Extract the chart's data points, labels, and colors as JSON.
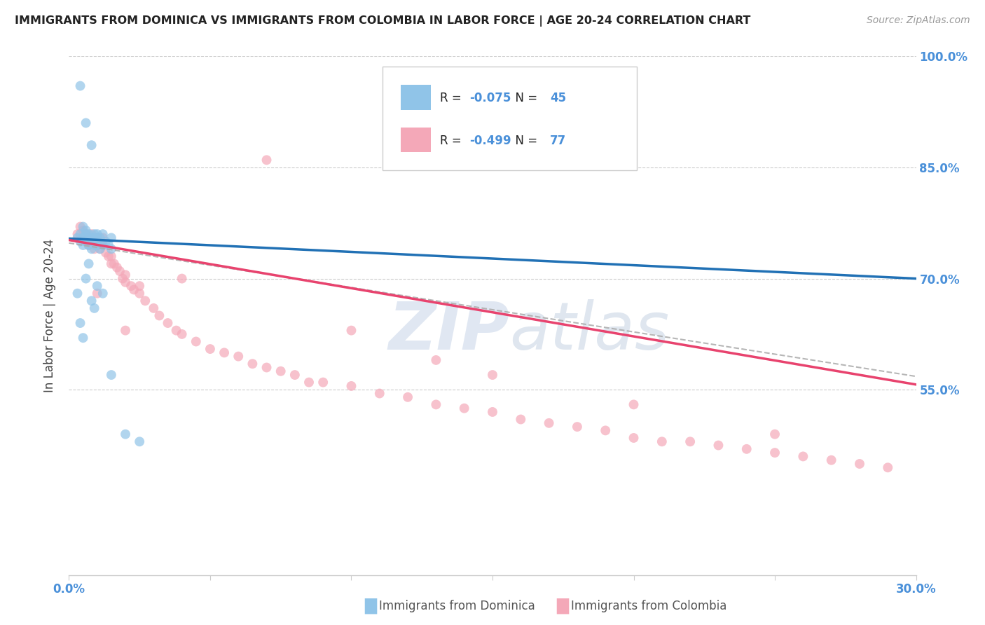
{
  "title": "IMMIGRANTS FROM DOMINICA VS IMMIGRANTS FROM COLOMBIA IN LABOR FORCE | AGE 20-24 CORRELATION CHART",
  "source": "Source: ZipAtlas.com",
  "ylabel": "In Labor Force | Age 20-24",
  "xlim": [
    0.0,
    0.3
  ],
  "ylim": [
    0.3,
    1.0
  ],
  "xtick_positions": [
    0.0,
    0.05,
    0.1,
    0.15,
    0.2,
    0.25,
    0.3
  ],
  "xtick_labels": [
    "0.0%",
    "",
    "",
    "",
    "",
    "",
    "30.0%"
  ],
  "ytick_positions": [
    0.55,
    0.7,
    0.85,
    1.0
  ],
  "ytick_labels": [
    "55.0%",
    "70.0%",
    "85.0%",
    "100.0%"
  ],
  "grid_lines": [
    0.55,
    0.7,
    0.85,
    1.0
  ],
  "dominica_color": "#90c4e8",
  "colombia_color": "#f4a8b8",
  "dominica_line_color": "#2171b5",
  "colombia_line_color": "#e8436e",
  "dashed_line_color": "#aaaaaa",
  "R_dominica": -0.075,
  "N_dominica": 45,
  "R_colombia": -0.499,
  "N_colombia": 77,
  "watermark_zip": "ZIP",
  "watermark_atlas": "atlas",
  "legend_label_dominica": "Immigrants from Dominica",
  "legend_label_colombia": "Immigrants from Colombia",
  "dominica_line_intercept": 0.754,
  "dominica_line_slope": -0.18,
  "colombia_line_intercept": 0.752,
  "colombia_line_slope": -0.65,
  "dashed_line_intercept": 0.748,
  "dashed_line_slope": -0.6,
  "dominica_x": [
    0.003,
    0.004,
    0.004,
    0.005,
    0.005,
    0.005,
    0.006,
    0.006,
    0.006,
    0.007,
    0.007,
    0.007,
    0.008,
    0.008,
    0.008,
    0.009,
    0.009,
    0.009,
    0.01,
    0.01,
    0.01,
    0.01,
    0.011,
    0.011,
    0.012,
    0.012,
    0.013,
    0.014,
    0.015,
    0.015,
    0.003,
    0.004,
    0.005,
    0.006,
    0.007,
    0.008,
    0.009,
    0.01,
    0.012,
    0.015,
    0.02,
    0.025,
    0.008,
    0.006,
    0.004
  ],
  "dominica_y": [
    0.755,
    0.76,
    0.75,
    0.745,
    0.755,
    0.77,
    0.75,
    0.765,
    0.76,
    0.755,
    0.745,
    0.76,
    0.75,
    0.755,
    0.74,
    0.745,
    0.755,
    0.76,
    0.75,
    0.745,
    0.755,
    0.76,
    0.74,
    0.755,
    0.745,
    0.76,
    0.75,
    0.745,
    0.74,
    0.755,
    0.68,
    0.64,
    0.62,
    0.7,
    0.72,
    0.67,
    0.66,
    0.69,
    0.68,
    0.57,
    0.49,
    0.48,
    0.88,
    0.91,
    0.96
  ],
  "colombia_x": [
    0.003,
    0.004,
    0.005,
    0.005,
    0.006,
    0.006,
    0.007,
    0.007,
    0.008,
    0.008,
    0.009,
    0.009,
    0.01,
    0.01,
    0.011,
    0.011,
    0.012,
    0.012,
    0.013,
    0.014,
    0.015,
    0.015,
    0.016,
    0.017,
    0.018,
    0.019,
    0.02,
    0.02,
    0.022,
    0.023,
    0.025,
    0.025,
    0.027,
    0.03,
    0.032,
    0.035,
    0.038,
    0.04,
    0.045,
    0.05,
    0.055,
    0.06,
    0.065,
    0.07,
    0.075,
    0.08,
    0.085,
    0.09,
    0.1,
    0.11,
    0.12,
    0.13,
    0.14,
    0.15,
    0.16,
    0.17,
    0.18,
    0.19,
    0.2,
    0.21,
    0.22,
    0.23,
    0.24,
    0.25,
    0.26,
    0.27,
    0.28,
    0.29,
    0.1,
    0.15,
    0.2,
    0.25,
    0.13,
    0.07,
    0.04,
    0.02,
    0.01
  ],
  "colombia_y": [
    0.76,
    0.77,
    0.755,
    0.765,
    0.75,
    0.76,
    0.745,
    0.755,
    0.75,
    0.76,
    0.74,
    0.75,
    0.745,
    0.755,
    0.74,
    0.75,
    0.745,
    0.755,
    0.735,
    0.73,
    0.72,
    0.73,
    0.72,
    0.715,
    0.71,
    0.7,
    0.695,
    0.705,
    0.69,
    0.685,
    0.68,
    0.69,
    0.67,
    0.66,
    0.65,
    0.64,
    0.63,
    0.625,
    0.615,
    0.605,
    0.6,
    0.595,
    0.585,
    0.58,
    0.575,
    0.57,
    0.56,
    0.56,
    0.555,
    0.545,
    0.54,
    0.53,
    0.525,
    0.52,
    0.51,
    0.505,
    0.5,
    0.495,
    0.485,
    0.48,
    0.48,
    0.475,
    0.47,
    0.465,
    0.46,
    0.455,
    0.45,
    0.445,
    0.63,
    0.57,
    0.53,
    0.49,
    0.59,
    0.86,
    0.7,
    0.63,
    0.68
  ]
}
